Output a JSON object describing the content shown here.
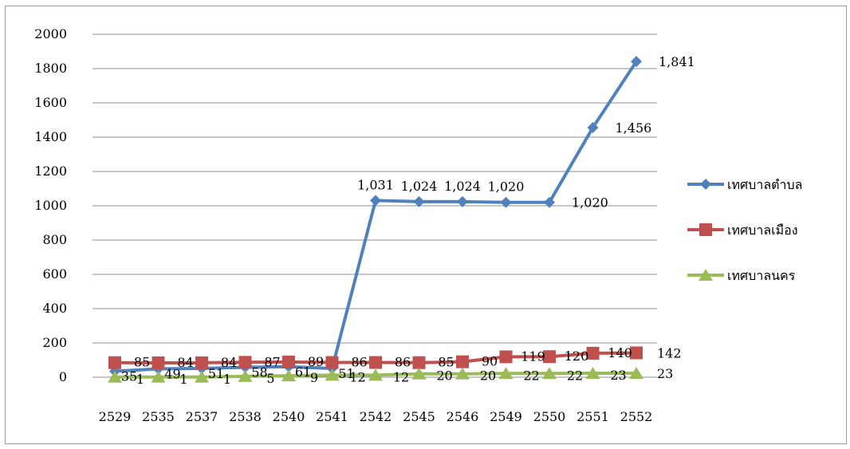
{
  "chart_data": {
    "type": "line",
    "title": "",
    "xlabel": "",
    "ylabel": "",
    "ylim": [
      0,
      2000
    ],
    "yticks": [
      "2000",
      "1800",
      "1600",
      "1400",
      "1200",
      "1000",
      "800",
      "600",
      "400",
      "200",
      "0"
    ],
    "grid": true,
    "legend_position": "right",
    "categories": [
      "2529",
      "2535",
      "2537",
      "2538",
      "2540",
      "2541",
      "2542",
      "2545",
      "2546",
      "2549",
      "2550",
      "2551",
      "2552"
    ],
    "series": [
      {
        "name": "เทศบาลตำบล",
        "color": "#4F81BD",
        "marker": "diamond",
        "values": [
          35,
          49,
          51,
          58,
          61,
          51,
          1031,
          1024,
          1024,
          1020,
          1020,
          1456,
          1841
        ],
        "labels": [
          "35",
          "49",
          "51",
          "58",
          "61",
          "51",
          "1,031",
          "1,024",
          "1,024",
          "1,020",
          "1,020",
          "1,456",
          "1,841"
        ]
      },
      {
        "name": "เทศบาลเมือง",
        "color": "#C0504D",
        "marker": "square",
        "values": [
          85,
          84,
          84,
          87,
          89,
          86,
          86,
          85,
          90,
          119,
          120,
          140,
          142
        ],
        "labels": [
          "85",
          "84",
          "84",
          "87",
          "89",
          "86",
          "86",
          "85",
          "90",
          "119",
          "120",
          "140",
          "142"
        ]
      },
      {
        "name": "เทศบาลนคร",
        "color": "#9BBB59",
        "marker": "triangle",
        "values": [
          1,
          1,
          1,
          5,
          9,
          12,
          12,
          20,
          20,
          22,
          22,
          23,
          23
        ],
        "labels": [
          "1",
          "1",
          "1",
          "5",
          "9",
          "12",
          "12",
          "20",
          "20",
          "22",
          "22",
          "23",
          "23"
        ]
      }
    ]
  }
}
